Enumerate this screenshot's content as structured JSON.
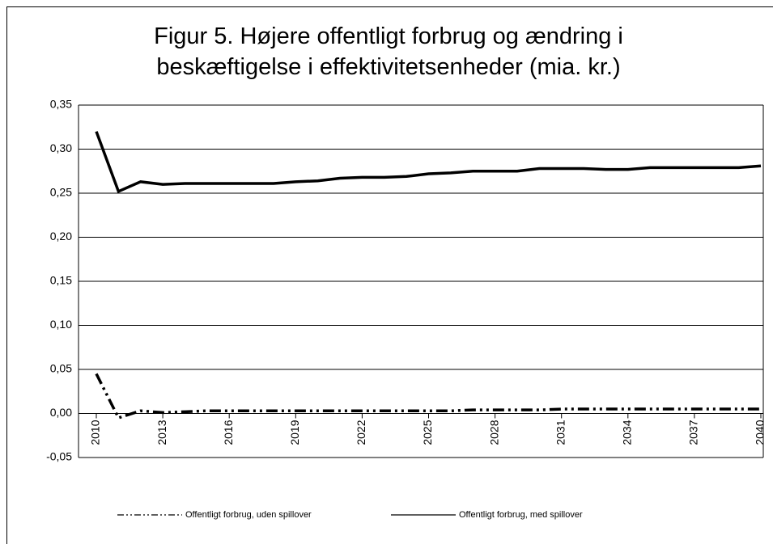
{
  "chart_data": {
    "type": "line",
    "title": "Figur 5. Højere offentligt forbrug og ændring i beskæftigelse i effektivitetsenheder (mia. kr.)",
    "x": [
      2010,
      2011,
      2012,
      2013,
      2014,
      2015,
      2016,
      2017,
      2018,
      2019,
      2020,
      2021,
      2022,
      2023,
      2024,
      2025,
      2026,
      2027,
      2028,
      2029,
      2030,
      2031,
      2032,
      2033,
      2034,
      2035,
      2036,
      2037,
      2038,
      2039,
      2040
    ],
    "xlim": [
      2010,
      2040
    ],
    "xticks": [
      2010,
      2013,
      2016,
      2019,
      2022,
      2025,
      2028,
      2031,
      2034,
      2037,
      2040
    ],
    "ylim": [
      -0.05,
      0.35
    ],
    "yticks": [
      {
        "value": -0.05,
        "label": "-0,05"
      },
      {
        "value": 0,
        "label": "0,00"
      },
      {
        "value": 0.05,
        "label": "0,05"
      },
      {
        "value": 0.1,
        "label": "0,10"
      },
      {
        "value": 0.15,
        "label": "0,15"
      },
      {
        "value": 0.2,
        "label": "0,20"
      },
      {
        "value": 0.25,
        "label": "0,25"
      },
      {
        "value": 0.3,
        "label": "0,30"
      },
      {
        "value": 0.35,
        "label": "0,35"
      }
    ],
    "grid": true,
    "legend": "bottom",
    "series": [
      {
        "name": "Offentligt forbrug, uden spillover",
        "color": "#000000",
        "dash": "dash-dot",
        "values": [
          0.045,
          -0.005,
          0.003,
          0.001,
          0.002,
          0.003,
          0.003,
          0.003,
          0.003,
          0.003,
          0.003,
          0.003,
          0.003,
          0.003,
          0.003,
          0.003,
          0.003,
          0.004,
          0.004,
          0.004,
          0.004,
          0.005,
          0.005,
          0.005,
          0.005,
          0.005,
          0.005,
          0.005,
          0.005,
          0.005,
          0.005
        ]
      },
      {
        "name": "Offentligt forbrug, med spillover",
        "color": "#000000",
        "dash": "solid",
        "values": [
          0.32,
          0.252,
          0.263,
          0.26,
          0.261,
          0.261,
          0.261,
          0.261,
          0.261,
          0.263,
          0.264,
          0.267,
          0.268,
          0.268,
          0.269,
          0.272,
          0.273,
          0.275,
          0.275,
          0.275,
          0.278,
          0.278,
          0.278,
          0.277,
          0.277,
          0.279,
          0.279,
          0.279,
          0.279,
          0.279,
          0.281
        ]
      }
    ]
  }
}
